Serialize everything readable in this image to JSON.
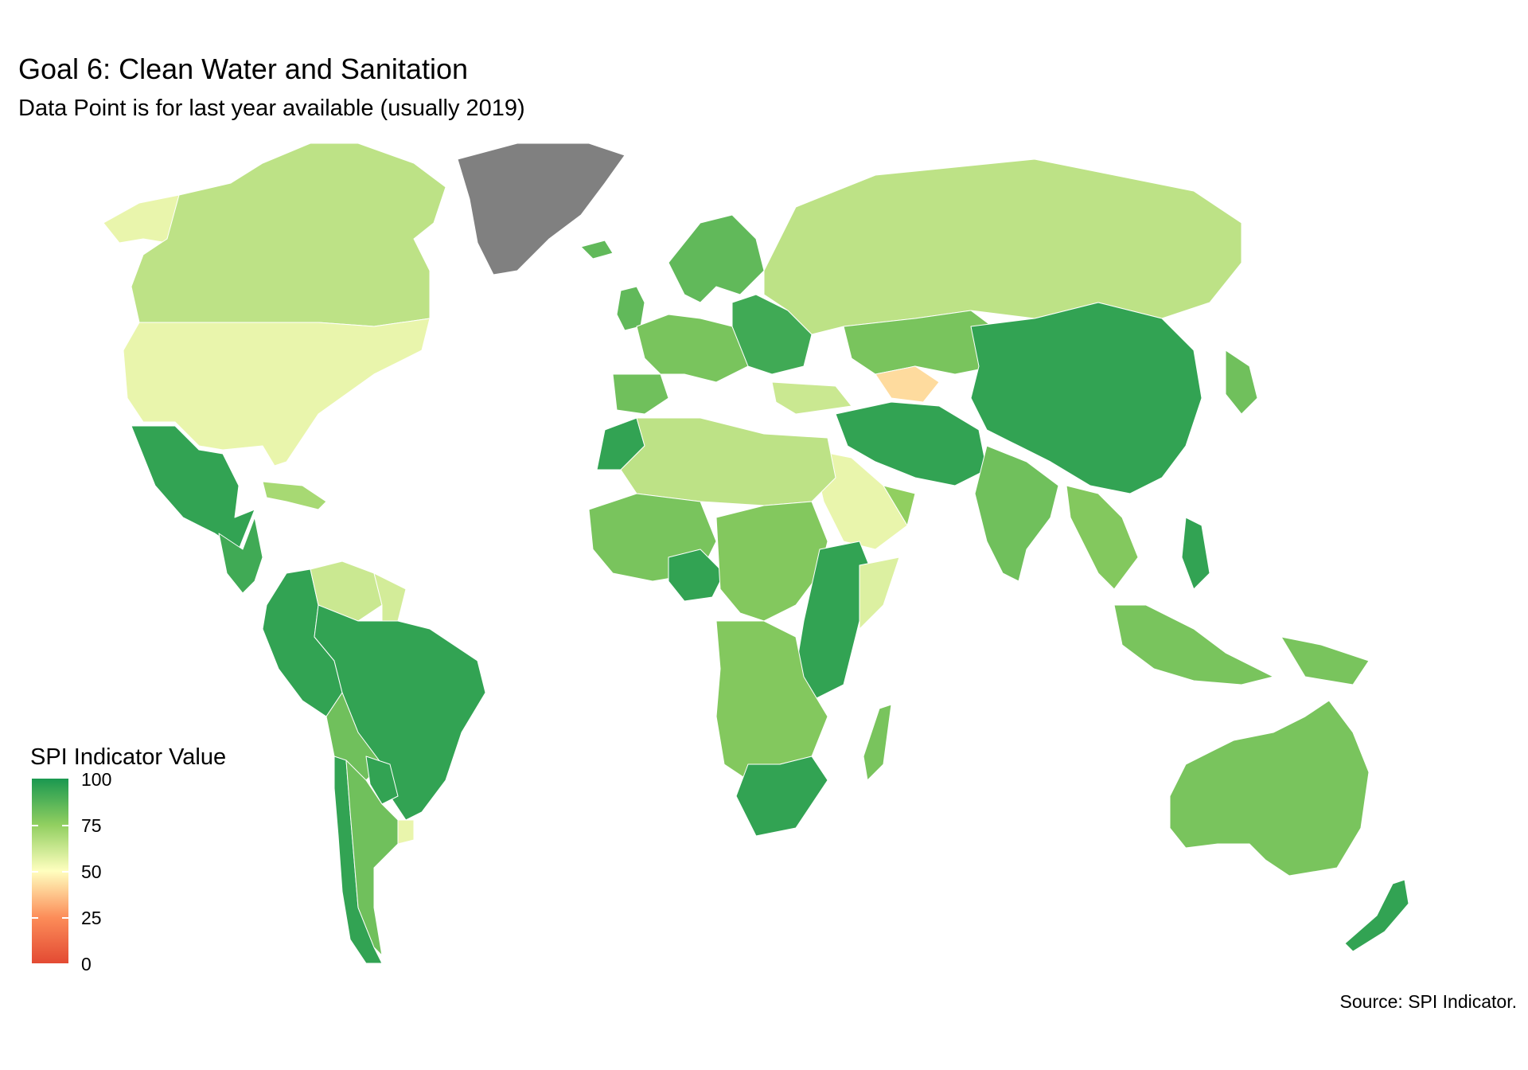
{
  "title": "Goal 6: Clean Water and Sanitation",
  "subtitle": "Data Point is for last year available (usually 2019)",
  "source": "Source: SPI Indicator.",
  "legend": {
    "title": "SPI Indicator Value",
    "ticks": [
      "100",
      "75",
      "50",
      "25",
      "0"
    ],
    "scale": {
      "min": 0,
      "max": 100,
      "colors": [
        "#d73027",
        "#fc8d59",
        "#ffffbf",
        "#91cf60",
        "#1a9850"
      ]
    }
  },
  "colors": {
    "no_data": "#808080",
    "missing": "#cccccc"
  },
  "regions": [
    {
      "name": "canada",
      "value": 65
    },
    {
      "name": "usa",
      "value": 55
    },
    {
      "name": "alaska",
      "value": 55
    },
    {
      "name": "greenland",
      "value": null
    },
    {
      "name": "mexico",
      "value": 95
    },
    {
      "name": "central-america",
      "value": 92
    },
    {
      "name": "caribbean",
      "value": 70
    },
    {
      "name": "colombia-ecuador-peru",
      "value": 95
    },
    {
      "name": "venezuela",
      "value": 62
    },
    {
      "name": "guianas",
      "value": 60
    },
    {
      "name": "brazil",
      "value": 95
    },
    {
      "name": "bolivia",
      "value": 82
    },
    {
      "name": "paraguay",
      "value": 95
    },
    {
      "name": "chile",
      "value": 95
    },
    {
      "name": "argentina",
      "value": 82
    },
    {
      "name": "uruguay",
      "value": 55
    },
    {
      "name": "iceland",
      "value": 85
    },
    {
      "name": "scandinavia",
      "value": 85
    },
    {
      "name": "uk-ireland",
      "value": 85
    },
    {
      "name": "western-europe",
      "value": 80
    },
    {
      "name": "iberia",
      "value": 82
    },
    {
      "name": "eastern-europe",
      "value": 92
    },
    {
      "name": "russia",
      "value": 65
    },
    {
      "name": "kazakhstan",
      "value": 80
    },
    {
      "name": "turkmenistan",
      "value": 42
    },
    {
      "name": "turkey",
      "value": 62
    },
    {
      "name": "mongolia-china",
      "value": 95
    },
    {
      "name": "iran-pakistan",
      "value": 95
    },
    {
      "name": "india",
      "value": 82
    },
    {
      "name": "arabia",
      "value": 55
    },
    {
      "name": "oman",
      "value": 75
    },
    {
      "name": "southeast-asia",
      "value": 78
    },
    {
      "name": "philippines",
      "value": 95
    },
    {
      "name": "indonesia",
      "value": 80
    },
    {
      "name": "japan",
      "value": 82
    },
    {
      "name": "morocco",
      "value": 95
    },
    {
      "name": "sahara",
      "value": 65
    },
    {
      "name": "west-africa",
      "value": 80
    },
    {
      "name": "nigeria",
      "value": 95
    },
    {
      "name": "central-africa",
      "value": 78
    },
    {
      "name": "ethiopia-east-africa",
      "value": 95
    },
    {
      "name": "somalia",
      "value": 58
    },
    {
      "name": "southern-africa",
      "value": 78
    },
    {
      "name": "south-africa",
      "value": 95
    },
    {
      "name": "madagascar",
      "value": 80
    },
    {
      "name": "australia",
      "value": 80
    },
    {
      "name": "new-zealand",
      "value": 95
    },
    {
      "name": "papua",
      "value": 80
    }
  ]
}
